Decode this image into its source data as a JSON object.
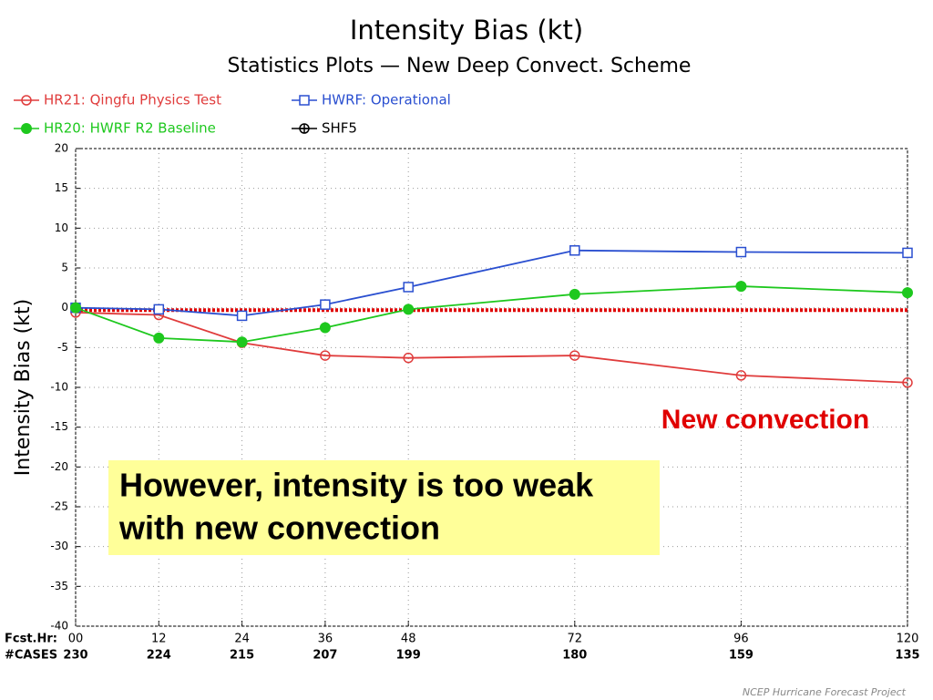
{
  "chart_data": {
    "type": "line",
    "title": "Intensity Bias (kt)",
    "subtitle": "Statistics Plots — New Deep Convect. Scheme",
    "y_label": "Intensity Bias (kt)",
    "x_row_label": "Fcst.Hr:",
    "cases_label": "#CASES",
    "x": [
      0,
      12,
      24,
      36,
      48,
      72,
      96,
      120
    ],
    "cases": [
      230,
      224,
      215,
      207,
      199,
      180,
      159,
      135
    ],
    "xlim": [
      0,
      120
    ],
    "xticks": [
      {
        "value": 0,
        "label": "00"
      },
      12,
      24,
      36,
      48,
      72,
      96,
      120
    ],
    "ylim": [
      -40,
      20
    ],
    "yticks": [
      -40,
      -35,
      -30,
      -25,
      -20,
      -15,
      -10,
      -5,
      0,
      5,
      10,
      15,
      20
    ],
    "grid": true,
    "series": [
      {
        "name": "HR21: Qingfu Physics Test",
        "color": "#e03c3c",
        "marker": "circle-open",
        "values": [
          -0.6,
          -0.9,
          -4.4,
          -6.0,
          -6.3,
          -6.0,
          -8.5,
          -9.4
        ]
      },
      {
        "name": "HWRF: Operational",
        "color": "#2a4fd0",
        "marker": "square-open",
        "values": [
          0,
          -0.2,
          -1.0,
          0.4,
          2.6,
          7.2,
          7.0,
          6.9
        ]
      },
      {
        "name": "HR20: HWRF R2 Baseline",
        "color": "#1ec81e",
        "marker": "circle-filled",
        "values": [
          0,
          -3.8,
          -4.3,
          -2.5,
          -0.2,
          1.7,
          2.7,
          1.9
        ]
      },
      {
        "name": "SHF5",
        "color": "#000000",
        "marker": "circle-plus",
        "values": [
          null,
          null,
          null,
          null,
          null,
          null,
          null,
          null
        ]
      }
    ],
    "reference_line": {
      "value": -0.3,
      "color": "#e00000"
    },
    "annotation": "New convection",
    "box_text": [
      "However, intensity is too weak",
      "with new convection"
    ],
    "footer": "NCEP Hurricane Forecast Project"
  }
}
